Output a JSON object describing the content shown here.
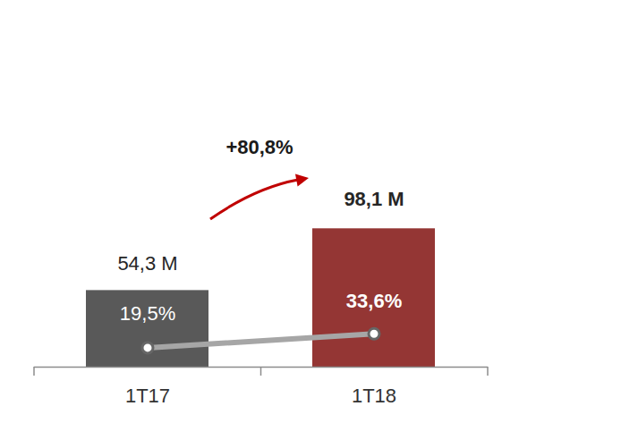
{
  "chart_data": {
    "type": "bar",
    "categories": [
      "1T17",
      "1T18"
    ],
    "series": [
      {
        "type": "bar",
        "colors": [
          "#595959",
          "#943634"
        ],
        "values": [
          54.3,
          98.1
        ],
        "value_labels": [
          "54,3 M",
          "98,1 M"
        ]
      },
      {
        "type": "line",
        "axis": "y2",
        "color": "#a6a6a6",
        "marker": "circle",
        "values": [
          19.5,
          33.6
        ],
        "value_labels": [
          "19,5%",
          "33,6%"
        ]
      }
    ],
    "annotations": [
      "+80,8%"
    ],
    "ylim": [
      0,
      260
    ],
    "yticks": [],
    "y2lim": [
      0,
      370
    ],
    "y2ticks": [],
    "data_labels": true,
    "tick_labels": "x"
  }
}
